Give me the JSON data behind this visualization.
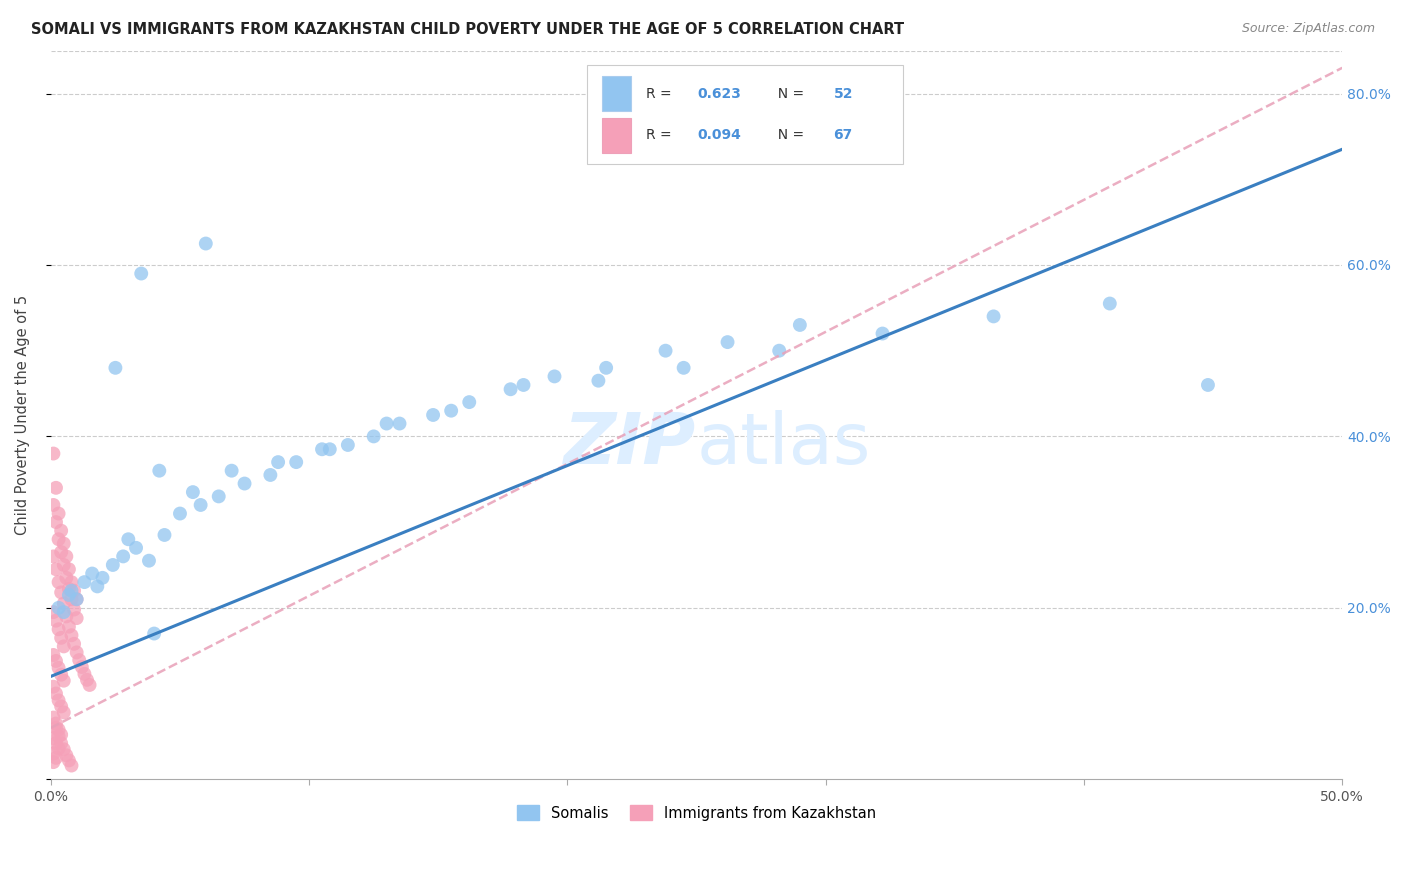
{
  "title": "SOMALI VS IMMIGRANTS FROM KAZAKHSTAN CHILD POVERTY UNDER THE AGE OF 5 CORRELATION CHART",
  "source": "Source: ZipAtlas.com",
  "ylabel": "Child Poverty Under the Age of 5",
  "xlim": [
    0.0,
    0.5
  ],
  "ylim": [
    0.0,
    0.85
  ],
  "xticks": [
    0.0,
    0.1,
    0.2,
    0.3,
    0.4,
    0.5
  ],
  "xtick_labels": [
    "0.0%",
    "",
    "",
    "",
    "",
    "50.0%"
  ],
  "yticks": [
    0.0,
    0.2,
    0.4,
    0.6,
    0.8
  ],
  "ytick_right_labels": [
    "",
    "20.0%",
    "40.0%",
    "60.0%",
    "80.0%"
  ],
  "somali_R": 0.623,
  "somali_N": 52,
  "kazakh_R": 0.094,
  "kazakh_N": 67,
  "somali_color": "#92c5f0",
  "kazakh_color": "#f5a0b8",
  "somali_line_color": "#3a7fc1",
  "kazakh_line_color": "#e8a0b8",
  "tick_color": "#4a90d9",
  "background_color": "#ffffff",
  "grid_color": "#cccccc",
  "watermark_color": "#ddeeff",
  "somali_x": [
    0.003,
    0.005,
    0.007,
    0.01,
    0.013,
    0.016,
    0.02,
    0.024,
    0.028,
    0.033,
    0.038,
    0.044,
    0.05,
    0.058,
    0.065,
    0.075,
    0.085,
    0.095,
    0.105,
    0.115,
    0.125,
    0.135,
    0.148,
    0.162,
    0.178,
    0.195,
    0.215,
    0.238,
    0.262,
    0.29,
    0.008,
    0.018,
    0.03,
    0.042,
    0.055,
    0.07,
    0.088,
    0.108,
    0.13,
    0.155,
    0.183,
    0.212,
    0.245,
    0.282,
    0.322,
    0.365,
    0.41,
    0.448,
    0.035,
    0.025,
    0.06,
    0.04
  ],
  "somali_y": [
    0.2,
    0.195,
    0.215,
    0.21,
    0.23,
    0.24,
    0.235,
    0.25,
    0.26,
    0.27,
    0.255,
    0.285,
    0.31,
    0.32,
    0.33,
    0.345,
    0.355,
    0.37,
    0.385,
    0.39,
    0.4,
    0.415,
    0.425,
    0.44,
    0.455,
    0.47,
    0.48,
    0.5,
    0.51,
    0.53,
    0.22,
    0.225,
    0.28,
    0.36,
    0.335,
    0.36,
    0.37,
    0.385,
    0.415,
    0.43,
    0.46,
    0.465,
    0.48,
    0.5,
    0.52,
    0.54,
    0.555,
    0.46,
    0.59,
    0.48,
    0.625,
    0.17
  ],
  "kazakh_x": [
    0.001,
    0.002,
    0.003,
    0.004,
    0.005,
    0.006,
    0.007,
    0.008,
    0.009,
    0.01,
    0.001,
    0.002,
    0.003,
    0.004,
    0.005,
    0.006,
    0.007,
    0.008,
    0.009,
    0.01,
    0.001,
    0.002,
    0.003,
    0.004,
    0.005,
    0.001,
    0.002,
    0.003,
    0.004,
    0.005,
    0.001,
    0.002,
    0.003,
    0.004,
    0.005,
    0.001,
    0.002,
    0.003,
    0.004,
    0.005,
    0.001,
    0.002,
    0.003,
    0.004,
    0.001,
    0.002,
    0.003,
    0.001,
    0.002,
    0.001,
    0.006,
    0.007,
    0.008,
    0.009,
    0.01,
    0.011,
    0.012,
    0.013,
    0.014,
    0.015,
    0.003,
    0.004,
    0.005,
    0.006,
    0.007,
    0.008,
    0.002
  ],
  "kazakh_y": [
    0.38,
    0.34,
    0.31,
    0.29,
    0.275,
    0.26,
    0.245,
    0.23,
    0.22,
    0.21,
    0.32,
    0.3,
    0.28,
    0.265,
    0.25,
    0.235,
    0.222,
    0.21,
    0.198,
    0.188,
    0.26,
    0.245,
    0.23,
    0.218,
    0.205,
    0.195,
    0.185,
    0.175,
    0.165,
    0.155,
    0.145,
    0.138,
    0.13,
    0.122,
    0.115,
    0.108,
    0.1,
    0.092,
    0.085,
    0.078,
    0.072,
    0.065,
    0.058,
    0.052,
    0.048,
    0.042,
    0.036,
    0.03,
    0.025,
    0.02,
    0.19,
    0.178,
    0.168,
    0.158,
    0.148,
    0.139,
    0.131,
    0.123,
    0.116,
    0.11,
    0.05,
    0.042,
    0.035,
    0.028,
    0.022,
    0.016,
    0.06
  ],
  "somali_line_x0": 0.0,
  "somali_line_x1": 0.5,
  "somali_line_y0": 0.12,
  "somali_line_y1": 0.735,
  "kazakh_line_x0": 0.0,
  "kazakh_line_x1": 0.5,
  "kazakh_line_y0": 0.06,
  "kazakh_line_y1": 0.83
}
